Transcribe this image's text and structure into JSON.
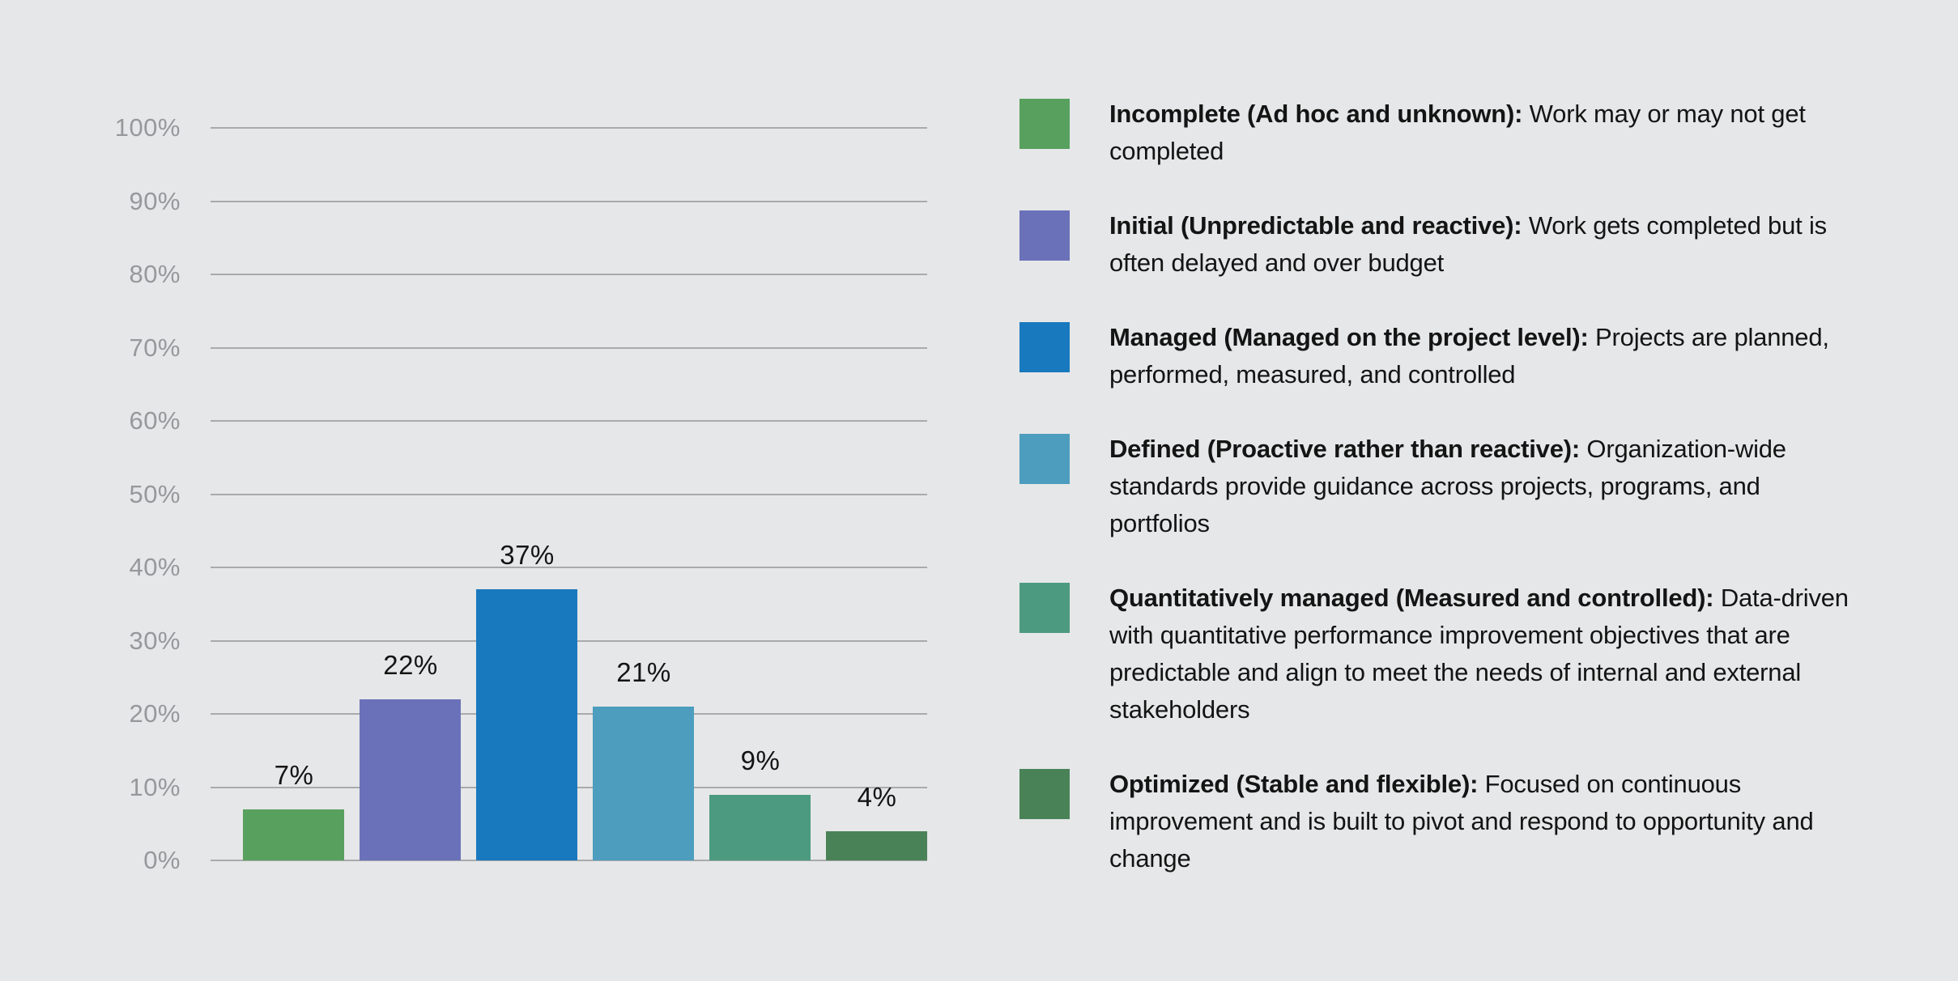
{
  "colors": {
    "background": "#e6e7e8",
    "gridline": "#a8aaac",
    "axis_label": "#97989b",
    "value_label": "#141414",
    "legend_text": "#141414"
  },
  "chart_data": {
    "type": "bar",
    "title": "",
    "xlabel": "",
    "ylabel": "",
    "categories": [
      "Incomplete",
      "Initial",
      "Managed",
      "Defined",
      "Quantitatively managed",
      "Optimized"
    ],
    "values": [
      7,
      22,
      37,
      21,
      9,
      4
    ],
    "value_labels": [
      "7%",
      "22%",
      "37%",
      "21%",
      "9%",
      "4%"
    ],
    "bar_colors": [
      "#58a05e",
      "#6b71b8",
      "#1979be",
      "#4c9dbe",
      "#4c9a7f",
      "#4a8258"
    ],
    "ylim": [
      0,
      100
    ],
    "y_tick_step": 10,
    "y_ticks": [
      "0%",
      "10%",
      "20%",
      "30%",
      "40%",
      "50%",
      "60%",
      "70%",
      "80%",
      "90%",
      "100%"
    ],
    "grid": true,
    "legend_position": "right"
  },
  "legend": {
    "items": [
      {
        "color": "#58a05e",
        "term": "Incomplete (Ad hoc and unknown):",
        "description": "Work may or may not get completed"
      },
      {
        "color": "#6b71b8",
        "term": "Initial (Unpredictable and reactive):",
        "description": "Work gets completed but is often delayed and over budget"
      },
      {
        "color": "#1979be",
        "term": "Managed (Managed on the project level):",
        "description": "Projects are planned, performed, measured, and controlled"
      },
      {
        "color": "#4c9dbe",
        "term": "Defined (Proactive rather than reactive):",
        "description": "Organization-wide standards provide guidance across projects, programs, and portfolios"
      },
      {
        "color": "#4c9a7f",
        "term": "Quantitatively managed (Measured and controlled):",
        "description": "Data-driven with quantitative performance improvement objectives that are predictable and align to meet the needs of internal and external stakeholders"
      },
      {
        "color": "#4a8258",
        "term": "Optimized (Stable and flexible):",
        "description": "Focused on continuous improvement and is built to pivot and respond to opportunity and change"
      }
    ]
  }
}
